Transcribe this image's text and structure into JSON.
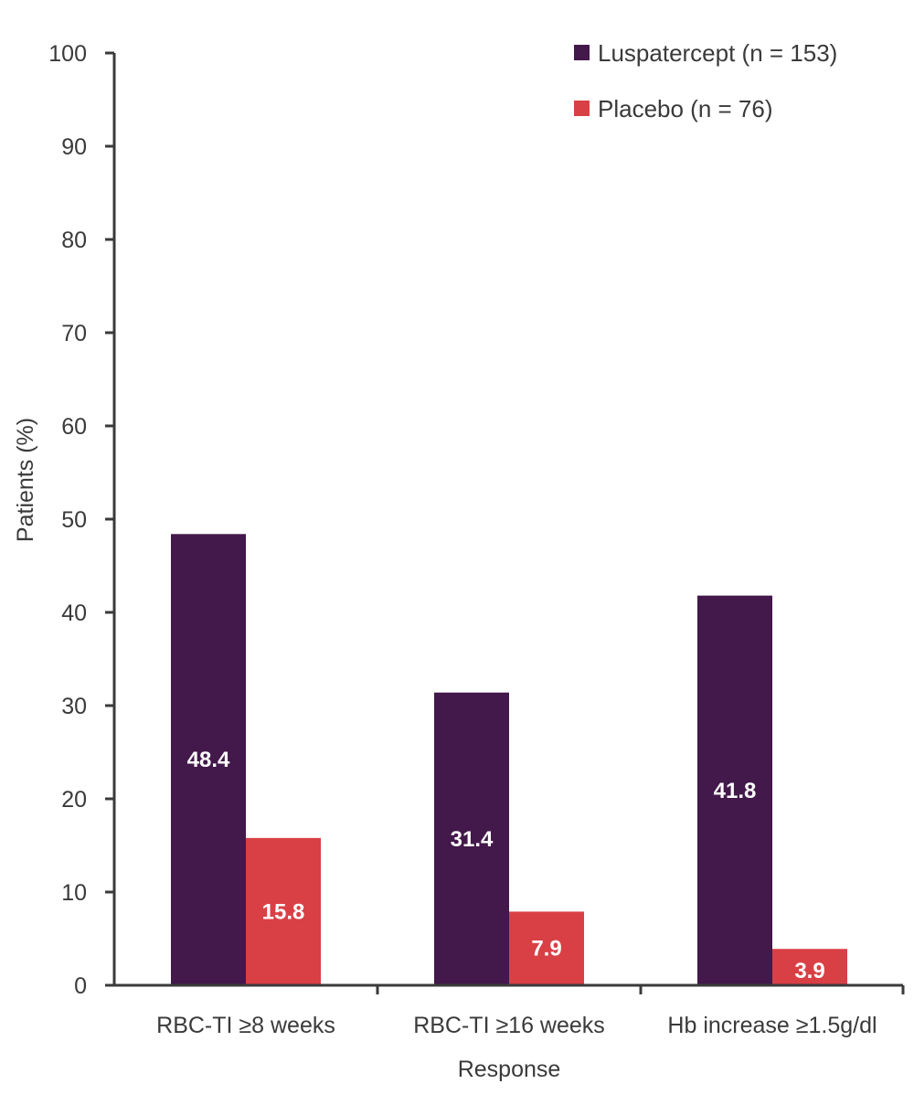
{
  "chart_data": {
    "type": "bar",
    "title": "",
    "xlabel": "Response",
    "ylabel": "Patients (%)",
    "ylim": [
      0,
      100
    ],
    "yticks": [
      0,
      10,
      20,
      30,
      40,
      50,
      60,
      70,
      80,
      90,
      100
    ],
    "grid": false,
    "legend_position": "top-right",
    "categories": [
      "RBC-TI ≥8 weeks",
      "RBC-TI ≥16 weeks",
      "Hb increase ≥1.5g/dl"
    ],
    "series": [
      {
        "name": "Luspatercept (n = 153)",
        "color": "#43184a",
        "values": [
          48.4,
          31.4,
          41.8
        ]
      },
      {
        "name": "Placebo (n = 76)",
        "color": "#d94045",
        "values": [
          15.8,
          7.9,
          3.9
        ]
      }
    ]
  }
}
